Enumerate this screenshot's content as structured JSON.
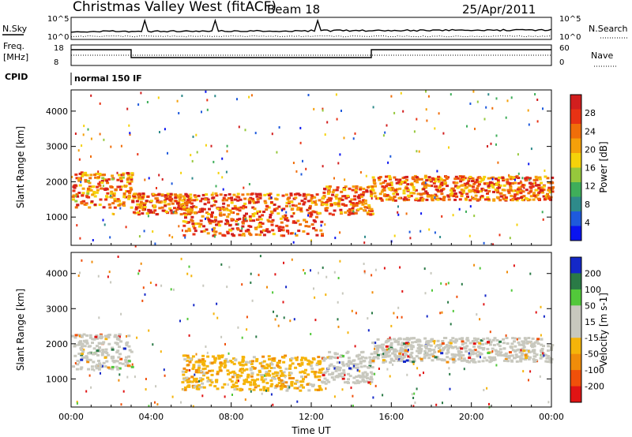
{
  "header": {
    "title": "Christmas Valley West (fitACF)",
    "beam": "Beam 18",
    "date": "25/Apr/2011"
  },
  "status_panels": {
    "nsky_label": "N.Sky",
    "nsearch_label": "N.Search",
    "freq_label_1": "Freq.",
    "freq_label_2": "[MHz]",
    "nave_label": "Nave",
    "cpid_label": "CPID",
    "cpid_text": "normal 150 IF",
    "noise_ticks": [
      "10^5",
      "10^0"
    ],
    "freq_ticks": [
      18,
      8
    ],
    "nave_ticks": [
      60,
      0
    ]
  },
  "chart_data": [
    {
      "type": "heatmap",
      "panel": "power",
      "xlabel": "",
      "ylabel": "Slant Range [km]",
      "xlim": [
        0,
        24
      ],
      "ylim": [
        200,
        4600
      ],
      "yticks": [
        1000,
        2000,
        3000,
        4000
      ],
      "colorbar_label": "Power [dB]",
      "colorbar_ticks": [
        4,
        8,
        12,
        16,
        20,
        24,
        28
      ],
      "colorbar_colors": [
        "#0a14f0",
        "#1e5adc",
        "#2e8a8a",
        "#3fae5a",
        "#96c83c",
        "#f5d20a",
        "#f5a00a",
        "#f06e0a",
        "#e83214",
        "#d21e1e"
      ],
      "scatter_regions": [
        {
          "t0": 0.0,
          "t1": 3.0,
          "r0": 1300,
          "r1": 2300,
          "intensity": 0.8
        },
        {
          "t0": 3.0,
          "t1": 6.0,
          "r0": 1100,
          "r1": 1700,
          "intensity": 0.85
        },
        {
          "t0": 5.5,
          "t1": 12.5,
          "r0": 500,
          "r1": 1700,
          "intensity": 0.9
        },
        {
          "t0": 12.5,
          "t1": 15.0,
          "r0": 1100,
          "r1": 1900,
          "intensity": 0.85
        },
        {
          "t0": 15.0,
          "t1": 24.0,
          "r0": 1500,
          "r1": 2200,
          "intensity": 0.85
        }
      ]
    },
    {
      "type": "heatmap",
      "panel": "velocity",
      "xlabel": "Time UT",
      "ylabel": "Slant Range [km]",
      "xlim": [
        0,
        24
      ],
      "ylim": [
        200,
        4600
      ],
      "yticks": [
        1000,
        2000,
        3000,
        4000
      ],
      "xticks": [
        "00:00",
        "04:00",
        "08:00",
        "12:00",
        "16:00",
        "20:00",
        "00:00"
      ],
      "colorbar_label": "Velocity [m s-1]",
      "colorbar_ticks": [
        200,
        100,
        50,
        15,
        -15,
        -50,
        -100,
        -200
      ],
      "colorbar_colors": [
        "#1428c8",
        "#2a7a46",
        "#52c83a",
        "#c8c8be",
        "#c8c8be",
        "#f5b40a",
        "#f08c0a",
        "#f0500a",
        "#e01414"
      ],
      "scatter_regions": [
        {
          "t0": 0.0,
          "t1": 3.0,
          "r0": 1300,
          "r1": 2300,
          "kind": "gray"
        },
        {
          "t0": 5.5,
          "t1": 12.5,
          "r0": 700,
          "r1": 1700,
          "kind": "orange"
        },
        {
          "t0": 12.5,
          "t1": 15.0,
          "r0": 900,
          "r1": 1800,
          "kind": "gray"
        },
        {
          "t0": 15.0,
          "t1": 24.0,
          "r0": 1500,
          "r1": 2200,
          "kind": "gray"
        }
      ]
    }
  ]
}
